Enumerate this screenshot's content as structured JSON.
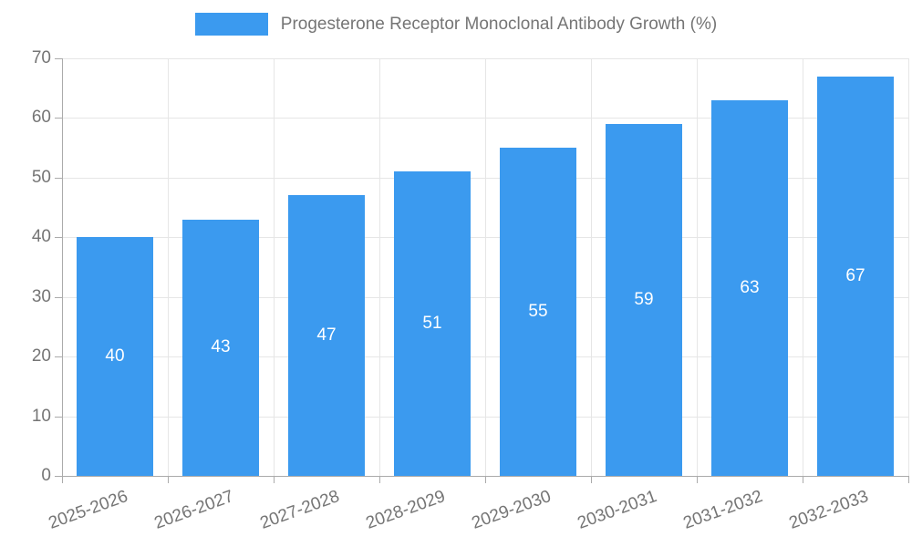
{
  "legend": {
    "label": "Progesterone Receptor Monoclonal Antibody Growth (%)"
  },
  "colors": {
    "bar": "#3B9AEF",
    "grid": "#e6e6e6",
    "axis": "#ababab",
    "tick_text": "#757575",
    "value_label_text": "#ffffff",
    "background": "#ffffff"
  },
  "chart_data": {
    "type": "bar",
    "categories": [
      "2025-2026",
      "2026-2027",
      "2027-2028",
      "2028-2029",
      "2029-2030",
      "2030-2031",
      "2031-2032",
      "2032-2033"
    ],
    "values": [
      40,
      43,
      47,
      51,
      55,
      59,
      63,
      67
    ],
    "title": "",
    "xlabel": "",
    "ylabel": "",
    "ylim": [
      0,
      70
    ],
    "ytick_step": 10,
    "yticks": [
      0,
      10,
      20,
      30,
      40,
      50,
      60,
      70
    ],
    "grid": true,
    "legend_position": "top",
    "legend_label": "Progesterone Receptor Monoclonal Antibody Growth (%)",
    "value_labels_position": "inside-center",
    "x_tick_rotation_deg": -20
  }
}
